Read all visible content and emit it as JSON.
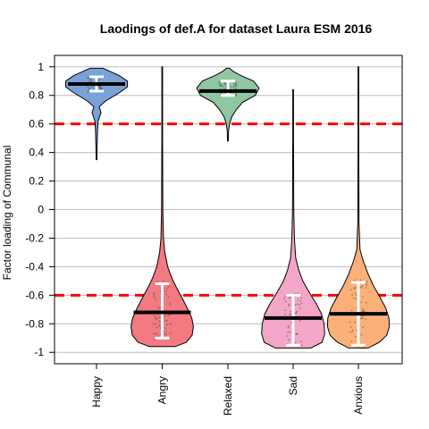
{
  "chart_data": {
    "type": "violin",
    "title": "Laodings of def.A for dataset Laura ESM 2016",
    "xlabel": "",
    "ylabel": "Factor loading of Communal",
    "ylim": [
      -1,
      1
    ],
    "yticks": [
      1,
      0.8,
      0.6,
      0.4,
      0.2,
      0,
      -0.2,
      -0.4,
      -0.6,
      -0.8,
      -1
    ],
    "ytick_labels": [
      "1",
      "0.8",
      "0.6",
      "0.4",
      "0.2",
      "0",
      "-0.2",
      "-0.4",
      "-0.6",
      "-0.8",
      "-1"
    ],
    "grid": true,
    "reference_lines": [
      0.6,
      -0.6
    ],
    "reference_line_color": "#ff0000",
    "categories": [
      "Happy",
      "Angry",
      "Relaxed",
      "Sad",
      "Anxious"
    ],
    "series": [
      {
        "category": "Happy",
        "color": "#7aa2d6",
        "median": 0.88,
        "q1": 0.83,
        "q3": 0.93,
        "min": 0.35,
        "max": 0.99,
        "density": [
          [
            0.35,
            0.01
          ],
          [
            0.45,
            0.02
          ],
          [
            0.55,
            0.03
          ],
          [
            0.62,
            0.05
          ],
          [
            0.68,
            0.14
          ],
          [
            0.72,
            0.08
          ],
          [
            0.76,
            0.28
          ],
          [
            0.82,
            0.72
          ],
          [
            0.86,
            0.96
          ],
          [
            0.9,
            0.96
          ],
          [
            0.94,
            0.7
          ],
          [
            0.97,
            0.4
          ],
          [
            0.99,
            0.2
          ]
        ]
      },
      {
        "category": "Angry",
        "color": "#f27a80",
        "median": -0.72,
        "q1": -0.9,
        "q3": -0.52,
        "min": -0.96,
        "max": 1.0,
        "density": [
          [
            -0.96,
            0.4
          ],
          [
            -0.93,
            0.75
          ],
          [
            -0.88,
            0.93
          ],
          [
            -0.82,
            0.97
          ],
          [
            -0.76,
            0.92
          ],
          [
            -0.7,
            0.8
          ],
          [
            -0.62,
            0.62
          ],
          [
            -0.55,
            0.45
          ],
          [
            -0.48,
            0.3
          ],
          [
            -0.4,
            0.17
          ],
          [
            -0.3,
            0.08
          ],
          [
            -0.2,
            0.04
          ],
          [
            0.0,
            0.02
          ],
          [
            0.5,
            0.01
          ],
          [
            1.0,
            0.01
          ]
        ]
      },
      {
        "category": "Relaxed",
        "color": "#8fc8a0",
        "median": 0.83,
        "q1": 0.8,
        "q3": 0.9,
        "min": 0.48,
        "max": 0.99,
        "density": [
          [
            0.48,
            0.01
          ],
          [
            0.55,
            0.02
          ],
          [
            0.6,
            0.05
          ],
          [
            0.65,
            0.12
          ],
          [
            0.7,
            0.26
          ],
          [
            0.75,
            0.45
          ],
          [
            0.8,
            0.85
          ],
          [
            0.85,
            0.97
          ],
          [
            0.9,
            0.8
          ],
          [
            0.94,
            0.4
          ],
          [
            0.97,
            0.15
          ],
          [
            0.99,
            0.05
          ]
        ]
      },
      {
        "category": "Sad",
        "color": "#f4a6c8",
        "median": -0.76,
        "q1": -0.95,
        "q3": -0.6,
        "min": -0.97,
        "max": 0.84,
        "density": [
          [
            -0.97,
            0.55
          ],
          [
            -0.93,
            0.9
          ],
          [
            -0.87,
            0.98
          ],
          [
            -0.8,
            0.96
          ],
          [
            -0.73,
            0.88
          ],
          [
            -0.66,
            0.72
          ],
          [
            -0.58,
            0.5
          ],
          [
            -0.5,
            0.3
          ],
          [
            -0.42,
            0.17
          ],
          [
            -0.34,
            0.08
          ],
          [
            -0.2,
            0.04
          ],
          [
            0.0,
            0.02
          ],
          [
            0.5,
            0.01
          ],
          [
            0.84,
            0.01
          ]
        ]
      },
      {
        "category": "Anxious",
        "color": "#fbb07a",
        "median": -0.73,
        "q1": -0.95,
        "q3": -0.51,
        "min": -0.97,
        "max": 1.0,
        "density": [
          [
            -0.97,
            0.3
          ],
          [
            -0.93,
            0.65
          ],
          [
            -0.88,
            0.88
          ],
          [
            -0.82,
            0.96
          ],
          [
            -0.76,
            0.95
          ],
          [
            -0.69,
            0.85
          ],
          [
            -0.61,
            0.66
          ],
          [
            -0.53,
            0.46
          ],
          [
            -0.45,
            0.3
          ],
          [
            -0.36,
            0.15
          ],
          [
            -0.28,
            0.05
          ],
          [
            -0.1,
            0.02
          ],
          [
            0.5,
            0.01
          ],
          [
            1.0,
            0.01
          ]
        ]
      }
    ]
  }
}
